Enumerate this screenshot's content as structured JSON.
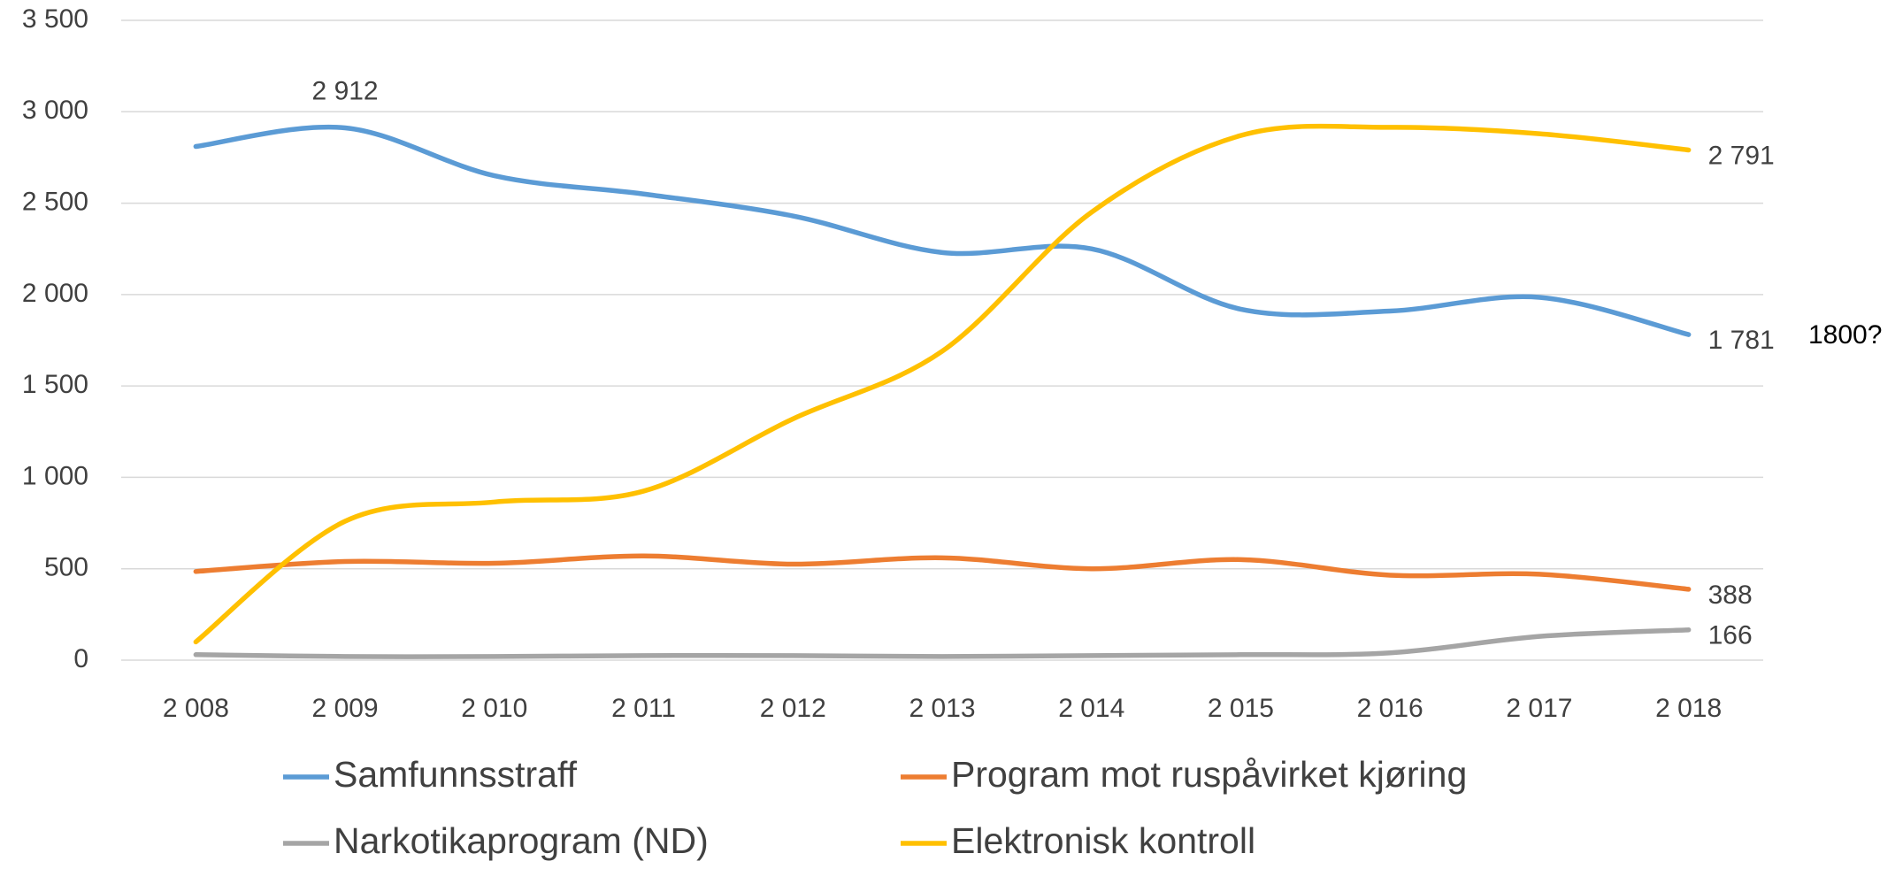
{
  "chart_data": {
    "type": "line",
    "categories": [
      "2 008",
      "2 009",
      "2 010",
      "2 011",
      "2 012",
      "2 013",
      "2 014",
      "2 015",
      "2 016",
      "2 017",
      "2 018"
    ],
    "series": [
      {
        "name": "Samfunnsstraff",
        "color": "#5b9bd5",
        "values": [
          2810,
          2912,
          2650,
          2550,
          2430,
          2230,
          2250,
          1920,
          1910,
          1985,
          1781
        ],
        "value_labels": [
          null,
          "2 912",
          null,
          null,
          null,
          null,
          null,
          null,
          null,
          null,
          "1 781"
        ]
      },
      {
        "name": "Program mot ruspåvirket kjøring",
        "color": "#ed7d31",
        "values": [
          485,
          540,
          530,
          570,
          525,
          560,
          500,
          550,
          465,
          470,
          388
        ],
        "value_labels": [
          null,
          null,
          null,
          null,
          null,
          null,
          null,
          null,
          null,
          null,
          "388"
        ]
      },
      {
        "name": "Narkotikaprogram (ND)",
        "color": "#a5a5a5",
        "values": [
          30,
          20,
          20,
          25,
          25,
          20,
          25,
          30,
          40,
          130,
          166
        ],
        "value_labels": [
          null,
          null,
          null,
          null,
          null,
          null,
          null,
          null,
          null,
          null,
          "166"
        ]
      },
      {
        "name": "Elektronisk kontroll",
        "color": "#ffc000",
        "values": [
          100,
          760,
          865,
          925,
          1320,
          1690,
          2450,
          2870,
          2915,
          2880,
          2791
        ],
        "value_labels": [
          null,
          null,
          null,
          null,
          null,
          null,
          null,
          null,
          null,
          null,
          "2 791"
        ]
      }
    ],
    "annotation": "1800?",
    "ylim": [
      0,
      3500
    ],
    "yticks": [
      0,
      500,
      {
        "value": 1000,
        "label": "1 000"
      },
      {
        "value": 1500,
        "label": "1 500"
      },
      {
        "value": 2000,
        "label": "2 000"
      },
      {
        "value": 2500,
        "label": "2 500"
      },
      {
        "value": 3000,
        "label": "3 000"
      },
      {
        "value": 3500,
        "label": "3 500"
      }
    ],
    "grid": true,
    "legend": "bottom"
  }
}
